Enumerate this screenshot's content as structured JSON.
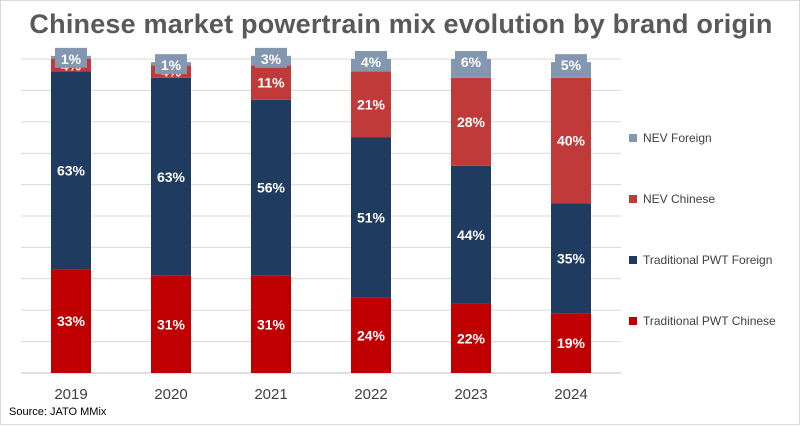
{
  "title": "Chinese market powertrain mix evolution by brand origin",
  "source": "Source: JATO MMix",
  "legend": [
    {
      "name": "NEV Foreign",
      "color": "#8497b0"
    },
    {
      "name": "NEV Chinese",
      "color": "#c13a3a"
    },
    {
      "name": "Traditional PWT Foreign",
      "color": "#1f3b5f"
    },
    {
      "name": "Traditional PWT Chinese",
      "color": "#c00000"
    }
  ],
  "chart_data": {
    "type": "bar",
    "stacked": true,
    "categories": [
      "2019",
      "2020",
      "2021",
      "2022",
      "2023",
      "2024"
    ],
    "series": [
      {
        "name": "Traditional PWT Chinese",
        "color": "#c00000",
        "values": [
          33,
          31,
          31,
          24,
          22,
          19
        ],
        "labels": [
          "33%",
          "31%",
          "31%",
          "24%",
          "22%",
          "19%"
        ]
      },
      {
        "name": "Traditional PWT Foreign",
        "color": "#1f3b5f",
        "values": [
          63,
          63,
          56,
          51,
          44,
          35
        ],
        "labels": [
          "63%",
          "63%",
          "56%",
          "51%",
          "44%",
          "35%"
        ]
      },
      {
        "name": "NEV Chinese",
        "color": "#c13a3a",
        "values": [
          4,
          4,
          11,
          21,
          28,
          40
        ],
        "labels": [
          "4%",
          "4%",
          "11%",
          "21%",
          "28%",
          "40%"
        ]
      },
      {
        "name": "NEV Foreign",
        "color": "#8497b0",
        "values": [
          1,
          1,
          3,
          4,
          6,
          5
        ],
        "labels": [
          "1%",
          "1%",
          "3%",
          "4%",
          "6%",
          "5%"
        ]
      }
    ],
    "ylim": [
      0,
      100
    ],
    "grid": true,
    "legend_position": "right"
  }
}
